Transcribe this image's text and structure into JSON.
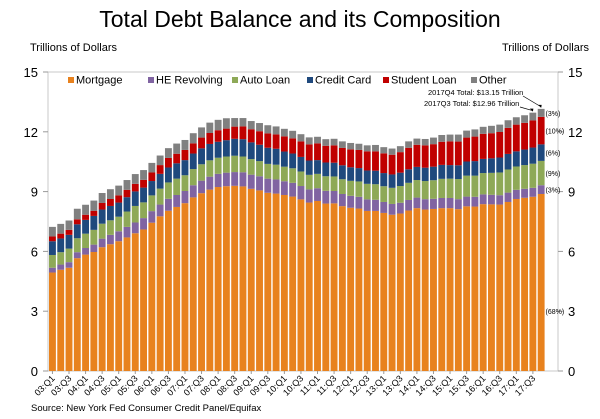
{
  "title": "Total Debt Balance and its Composition",
  "left_axis_title": "Trillions of Dollars",
  "right_axis_title": "Trillions of Dollars",
  "source": "Source: New York Fed Consumer Credit Panel/Equifax",
  "chart_data": {
    "type": "bar",
    "stacked": true,
    "title": "Total Debt Balance and its Composition",
    "ylabel": "Trillions of Dollars",
    "ylim": [
      0,
      15
    ],
    "yticks": [
      0,
      3,
      6,
      9,
      12,
      15
    ],
    "grid": false,
    "legend_placement": "top",
    "categories": [
      "03:Q1",
      "03:Q2",
      "03:Q3",
      "03:Q4",
      "04:Q1",
      "04:Q2",
      "04:Q3",
      "04:Q4",
      "05:Q1",
      "05:Q2",
      "05:Q3",
      "05:Q4",
      "06:Q1",
      "06:Q2",
      "06:Q3",
      "06:Q4",
      "07:Q1",
      "07:Q2",
      "07:Q3",
      "07:Q4",
      "08:Q1",
      "08:Q2",
      "08:Q3",
      "08:Q4",
      "09:Q1",
      "09:Q2",
      "09:Q3",
      "09:Q4",
      "10:Q1",
      "10:Q2",
      "10:Q3",
      "10:Q4",
      "11:Q1",
      "11:Q2",
      "11:Q3",
      "11:Q4",
      "12:Q1",
      "12:Q2",
      "12:Q3",
      "12:Q4",
      "13:Q1",
      "13:Q2",
      "13:Q3",
      "13:Q4",
      "14:Q1",
      "14:Q2",
      "14:Q3",
      "14:Q4",
      "15:Q1",
      "15:Q2",
      "15:Q3",
      "15:Q4",
      "16:Q1",
      "16:Q2",
      "16:Q3",
      "16:Q4",
      "17:Q1",
      "17:Q2",
      "17:Q3",
      "17:Q4"
    ],
    "tick_labels": [
      "03:Q1",
      "03:Q3",
      "04:Q1",
      "04:Q3",
      "05:Q1",
      "05:Q3",
      "06:Q1",
      "06:Q3",
      "07:Q1",
      "07:Q3",
      "08:Q1",
      "08:Q3",
      "09:Q1",
      "09:Q3",
      "10:Q1",
      "10:Q3",
      "11:Q1",
      "11:Q3",
      "12:Q1",
      "12:Q3",
      "13:Q1",
      "13:Q3",
      "14:Q1",
      "14:Q3",
      "15:Q1",
      "15:Q3",
      "16:Q1",
      "16:Q3",
      "17:Q1",
      "17:Q3"
    ],
    "series": [
      {
        "name": "Mortgage",
        "color": "#E8821E",
        "share_label": "(68%)",
        "values": [
          4.94,
          5.08,
          5.18,
          5.66,
          5.84,
          5.97,
          6.21,
          6.36,
          6.51,
          6.7,
          6.91,
          7.1,
          7.44,
          7.76,
          8.04,
          8.23,
          8.42,
          8.71,
          8.92,
          9.1,
          9.23,
          9.27,
          9.29,
          9.26,
          9.14,
          9.06,
          8.94,
          8.9,
          8.83,
          8.75,
          8.61,
          8.45,
          8.53,
          8.4,
          8.41,
          8.27,
          8.19,
          8.15,
          8.03,
          8.03,
          7.93,
          7.84,
          7.9,
          8.05,
          8.17,
          8.1,
          8.13,
          8.17,
          8.17,
          8.12,
          8.26,
          8.25,
          8.37,
          8.36,
          8.35,
          8.48,
          8.63,
          8.69,
          8.74,
          8.88
        ]
      },
      {
        "name": "HE Revolving",
        "color": "#8064A2",
        "share_label": "(3%)",
        "values": [
          0.24,
          0.26,
          0.28,
          0.3,
          0.33,
          0.37,
          0.43,
          0.47,
          0.5,
          0.53,
          0.54,
          0.57,
          0.58,
          0.59,
          0.6,
          0.6,
          0.61,
          0.61,
          0.63,
          0.65,
          0.66,
          0.68,
          0.69,
          0.71,
          0.71,
          0.71,
          0.71,
          0.71,
          0.69,
          0.69,
          0.67,
          0.66,
          0.64,
          0.64,
          0.62,
          0.61,
          0.6,
          0.59,
          0.58,
          0.56,
          0.55,
          0.54,
          0.54,
          0.53,
          0.53,
          0.52,
          0.51,
          0.51,
          0.51,
          0.5,
          0.49,
          0.49,
          0.49,
          0.48,
          0.47,
          0.47,
          0.46,
          0.45,
          0.45,
          0.44
        ]
      },
      {
        "name": "Auto Loan",
        "color": "#8EA957",
        "share_label": "(9%)",
        "values": [
          0.64,
          0.62,
          0.68,
          0.7,
          0.72,
          0.74,
          0.75,
          0.73,
          0.73,
          0.77,
          0.83,
          0.79,
          0.79,
          0.8,
          0.82,
          0.82,
          0.79,
          0.81,
          0.82,
          0.82,
          0.81,
          0.81,
          0.82,
          0.79,
          0.78,
          0.76,
          0.74,
          0.74,
          0.73,
          0.73,
          0.73,
          0.73,
          0.72,
          0.73,
          0.73,
          0.74,
          0.75,
          0.77,
          0.78,
          0.78,
          0.79,
          0.81,
          0.84,
          0.86,
          0.88,
          0.91,
          0.93,
          0.96,
          0.97,
          1.01,
          1.05,
          1.06,
          1.07,
          1.1,
          1.14,
          1.16,
          1.17,
          1.19,
          1.21,
          1.22
        ]
      },
      {
        "name": "Credit Card",
        "color": "#1F497D",
        "share_label": "(6%)",
        "values": [
          0.69,
          0.69,
          0.69,
          0.7,
          0.69,
          0.7,
          0.71,
          0.72,
          0.71,
          0.72,
          0.73,
          0.74,
          0.72,
          0.74,
          0.75,
          0.77,
          0.76,
          0.78,
          0.8,
          0.82,
          0.8,
          0.82,
          0.85,
          0.87,
          0.84,
          0.82,
          0.81,
          0.8,
          0.76,
          0.74,
          0.73,
          0.72,
          0.69,
          0.69,
          0.69,
          0.7,
          0.68,
          0.67,
          0.67,
          0.68,
          0.66,
          0.67,
          0.67,
          0.68,
          0.66,
          0.67,
          0.68,
          0.7,
          0.68,
          0.69,
          0.71,
          0.73,
          0.71,
          0.73,
          0.75,
          0.78,
          0.76,
          0.78,
          0.81,
          0.83
        ]
      },
      {
        "name": "Student Loan",
        "color": "#C00000",
        "share_label": "(10%)",
        "values": [
          0.24,
          0.24,
          0.25,
          0.25,
          0.26,
          0.26,
          0.33,
          0.35,
          0.36,
          0.37,
          0.38,
          0.39,
          0.43,
          0.44,
          0.48,
          0.48,
          0.51,
          0.51,
          0.54,
          0.55,
          0.58,
          0.58,
          0.61,
          0.64,
          0.66,
          0.68,
          0.72,
          0.72,
          0.76,
          0.76,
          0.78,
          0.81,
          0.84,
          0.84,
          0.87,
          0.87,
          0.9,
          0.91,
          0.96,
          0.97,
          0.99,
          0.99,
          1.03,
          1.08,
          1.11,
          1.12,
          1.13,
          1.16,
          1.19,
          1.19,
          1.2,
          1.23,
          1.26,
          1.26,
          1.28,
          1.31,
          1.34,
          1.34,
          1.36,
          1.38
        ]
      },
      {
        "name": "Other",
        "color": "#808080",
        "share_label": "(3%)",
        "values": [
          0.48,
          0.49,
          0.47,
          0.53,
          0.5,
          0.51,
          0.5,
          0.49,
          0.49,
          0.49,
          0.49,
          0.49,
          0.48,
          0.48,
          0.49,
          0.51,
          0.5,
          0.51,
          0.51,
          0.52,
          0.52,
          0.52,
          0.43,
          0.42,
          0.41,
          0.41,
          0.41,
          0.4,
          0.38,
          0.38,
          0.36,
          0.35,
          0.33,
          0.33,
          0.33,
          0.33,
          0.32,
          0.31,
          0.3,
          0.32,
          0.31,
          0.31,
          0.3,
          0.32,
          0.31,
          0.32,
          0.33,
          0.34,
          0.34,
          0.35,
          0.35,
          0.36,
          0.35,
          0.37,
          0.37,
          0.38,
          0.37,
          0.38,
          0.39,
          0.4
        ]
      }
    ],
    "annotations": [
      {
        "text": "2017Q4 Total: $13.15 Trillion",
        "category": "17:Q4"
      },
      {
        "text": "2017Q3 Total: $12.96 Trillion",
        "category": "17:Q3"
      }
    ]
  }
}
